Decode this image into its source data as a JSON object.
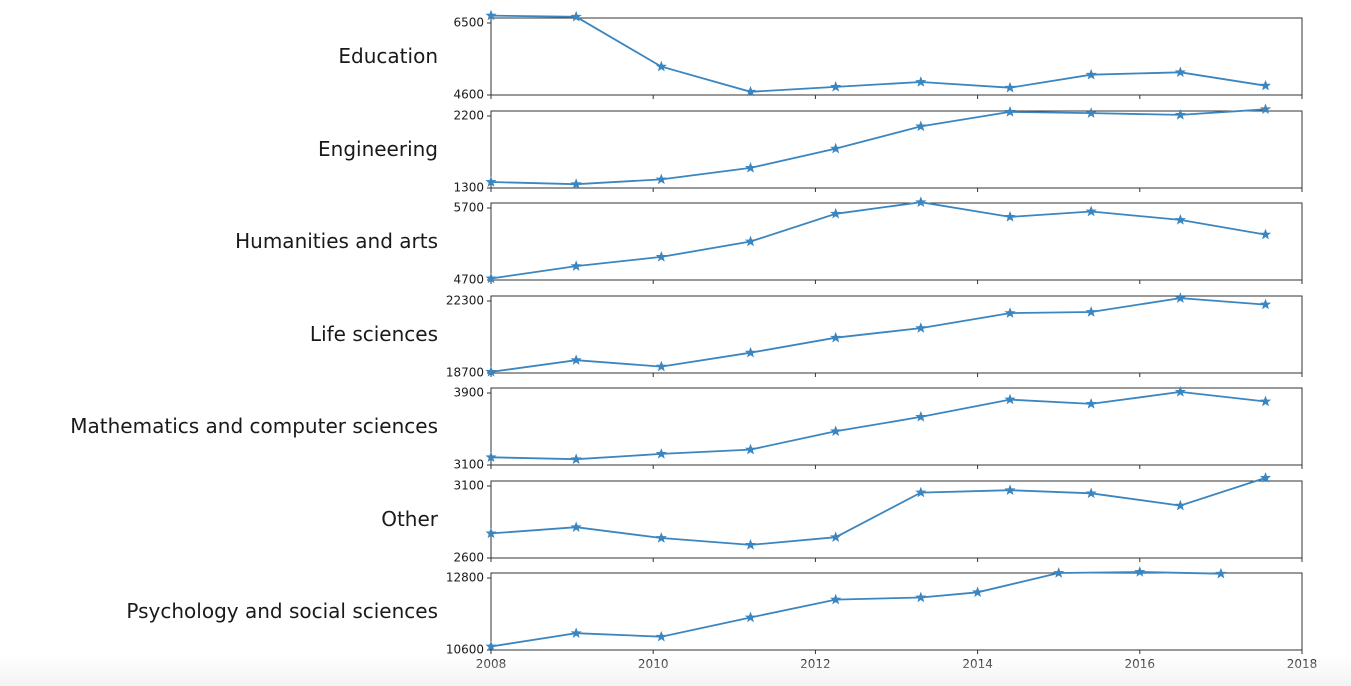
{
  "chart_data": {
    "type": "line",
    "series_color": "#3b86c0",
    "frame_color": "#333333",
    "marker": "star",
    "x_axis": {
      "xlim": [
        2008,
        2018
      ],
      "ticks": [
        "2008",
        "2010",
        "2012",
        "2014",
        "2016",
        "2018"
      ]
    },
    "panels": [
      {
        "label": "Education",
        "ylim": [
          4600,
          6500
        ],
        "y_ticks": [
          "6500",
          "4600"
        ],
        "points": [
          [
            2008.0,
            6560
          ],
          [
            2009.05,
            6530
          ],
          [
            2010.1,
            5300
          ],
          [
            2011.2,
            4680
          ],
          [
            2012.25,
            4800
          ],
          [
            2013.3,
            4920
          ],
          [
            2014.4,
            4780
          ],
          [
            2015.4,
            5100
          ],
          [
            2016.5,
            5160
          ],
          [
            2017.55,
            4830
          ]
        ]
      },
      {
        "label": "Engineering",
        "ylim": [
          1300,
          2200
        ],
        "y_ticks": [
          "2200",
          "1300"
        ],
        "points": [
          [
            2008.0,
            1370
          ],
          [
            2009.05,
            1345
          ],
          [
            2010.1,
            1400
          ],
          [
            2011.2,
            1535
          ],
          [
            2012.25,
            1760
          ],
          [
            2013.3,
            2020
          ],
          [
            2014.4,
            2190
          ],
          [
            2015.4,
            2175
          ],
          [
            2016.5,
            2155
          ],
          [
            2017.55,
            2220
          ]
        ]
      },
      {
        "label": "Humanities and arts",
        "ylim": [
          4700,
          5700
        ],
        "y_ticks": [
          "5700",
          "4700"
        ],
        "points": [
          [
            2008.0,
            4720
          ],
          [
            2009.05,
            4880
          ],
          [
            2010.1,
            5000
          ],
          [
            2011.2,
            5200
          ],
          [
            2012.25,
            5560
          ],
          [
            2013.3,
            5710
          ],
          [
            2014.4,
            5520
          ],
          [
            2015.4,
            5590
          ],
          [
            2016.5,
            5480
          ],
          [
            2017.55,
            5290
          ]
        ]
      },
      {
        "label": "Life sciences",
        "ylim": [
          18700,
          22300
        ],
        "y_ticks": [
          "22300",
          "18700"
        ],
        "points": [
          [
            2008.0,
            18750
          ],
          [
            2009.05,
            19300
          ],
          [
            2010.1,
            19000
          ],
          [
            2011.2,
            19650
          ],
          [
            2012.25,
            20350
          ],
          [
            2013.3,
            20800
          ],
          [
            2014.4,
            21500
          ],
          [
            2015.4,
            21550
          ],
          [
            2016.5,
            22200
          ],
          [
            2017.55,
            21900
          ]
        ]
      },
      {
        "label": "Mathematics and computer sciences",
        "ylim": [
          3100,
          3900
        ],
        "y_ticks": [
          "3900",
          "3100"
        ],
        "points": [
          [
            2008.0,
            3180
          ],
          [
            2009.05,
            3160
          ],
          [
            2010.1,
            3215
          ],
          [
            2011.2,
            3260
          ],
          [
            2012.25,
            3450
          ],
          [
            2013.3,
            3600
          ],
          [
            2014.4,
            3780
          ],
          [
            2015.4,
            3735
          ],
          [
            2016.5,
            3860
          ],
          [
            2017.55,
            3760
          ]
        ]
      },
      {
        "label": "Other",
        "ylim": [
          2600,
          3100
        ],
        "y_ticks": [
          "3100",
          "2600"
        ],
        "points": [
          [
            2008.0,
            2760
          ],
          [
            2009.05,
            2800
          ],
          [
            2010.1,
            2730
          ],
          [
            2011.2,
            2685
          ],
          [
            2012.25,
            2735
          ],
          [
            2013.3,
            3025
          ],
          [
            2014.4,
            3040
          ],
          [
            2015.4,
            3020
          ],
          [
            2016.5,
            2940
          ],
          [
            2017.55,
            3120
          ]
        ]
      },
      {
        "label": "Psychology and social sciences",
        "ylim": [
          10600,
          12800
        ],
        "y_ticks": [
          "12800",
          "10600"
        ],
        "points": [
          [
            2008.0,
            10700
          ],
          [
            2009.05,
            11080
          ],
          [
            2010.1,
            10980
          ],
          [
            2011.2,
            11530
          ],
          [
            2012.25,
            12040
          ],
          [
            2013.3,
            12100
          ],
          [
            2014.0,
            12250
          ],
          [
            2015.0,
            12800
          ],
          [
            2016.0,
            12830
          ],
          [
            2017.0,
            12780
          ]
        ]
      }
    ]
  }
}
